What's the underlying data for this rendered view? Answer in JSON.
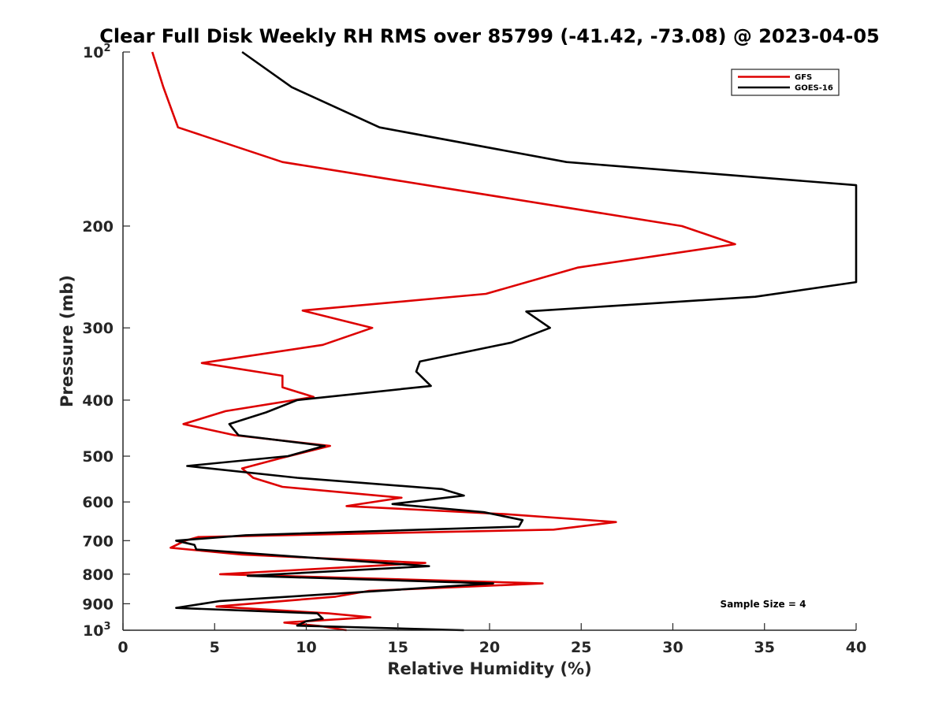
{
  "chart_data": {
    "type": "line",
    "title": "Clear Full Disk Weekly RH RMS over 85799 (-41.42, -73.08) @ 2023-04-05",
    "xlabel": "Relative Humidity (%)",
    "ylabel": "Pressure (mb)",
    "xlim": [
      0,
      40
    ],
    "ylim": [
      100,
      1000
    ],
    "y_scale": "log",
    "y_reversed": true,
    "x_ticks": [
      0,
      5,
      10,
      15,
      20,
      25,
      30,
      35,
      40
    ],
    "x_tick_labels": [
      "0",
      "5",
      "10",
      "15",
      "20",
      "25",
      "30",
      "35",
      "40"
    ],
    "y_ticks": [
      100,
      200,
      300,
      400,
      500,
      600,
      700,
      800,
      900,
      1000
    ],
    "y_tick_labels": [
      {
        "base": "10",
        "sup": "2"
      },
      {
        "base": "200",
        "sup": ""
      },
      {
        "base": "300",
        "sup": ""
      },
      {
        "base": "400",
        "sup": ""
      },
      {
        "base": "500",
        "sup": ""
      },
      {
        "base": "600",
        "sup": ""
      },
      {
        "base": "700",
        "sup": ""
      },
      {
        "base": "800",
        "sup": ""
      },
      {
        "base": "900",
        "sup": ""
      },
      {
        "base": "10",
        "sup": "3"
      }
    ],
    "grid": false,
    "legend_position": "top-right",
    "annotation": "Sample Size = 4",
    "series": [
      {
        "name": "GFS",
        "color": "#dd0000",
        "points": [
          [
            1.6,
            100
          ],
          [
            2.2,
            115
          ],
          [
            3.0,
            135
          ],
          [
            8.7,
            155
          ],
          [
            30.5,
            200
          ],
          [
            33.4,
            215
          ],
          [
            24.8,
            236
          ],
          [
            19.8,
            262
          ],
          [
            9.8,
            280
          ],
          [
            13.6,
            300
          ],
          [
            10.9,
            321
          ],
          [
            4.3,
            345
          ],
          [
            8.7,
            363
          ],
          [
            8.7,
            380
          ],
          [
            10.4,
            395
          ],
          [
            5.6,
            418
          ],
          [
            3.3,
            440
          ],
          [
            6.1,
            460
          ],
          [
            11.3,
            480
          ],
          [
            8.5,
            505
          ],
          [
            6.5,
            525
          ],
          [
            7.1,
            545
          ],
          [
            8.7,
            565
          ],
          [
            15.2,
            590
          ],
          [
            12.2,
            610
          ],
          [
            20.9,
            630
          ],
          [
            26.9,
            650
          ],
          [
            23.5,
            670
          ],
          [
            4.1,
            690
          ],
          [
            3.4,
            700
          ],
          [
            2.6,
            720
          ],
          [
            6.5,
            740
          ],
          [
            16.5,
            765
          ],
          [
            5.3,
            800
          ],
          [
            22.9,
            830
          ],
          [
            13.4,
            855
          ],
          [
            11.6,
            875
          ],
          [
            5.1,
            910
          ],
          [
            11.2,
            935
          ],
          [
            13.5,
            950
          ],
          [
            8.8,
            970
          ],
          [
            10.7,
            983
          ],
          [
            12.2,
            1000
          ]
        ]
      },
      {
        "name": "GOES-16",
        "color": "#000000",
        "points": [
          [
            6.5,
            100
          ],
          [
            9.2,
            115
          ],
          [
            14.0,
            135
          ],
          [
            24.2,
            155
          ],
          [
            40.0,
            170
          ],
          [
            40.0,
            250
          ],
          [
            34.5,
            265
          ],
          [
            22.0,
            281
          ],
          [
            23.3,
            300
          ],
          [
            21.2,
            318
          ],
          [
            16.2,
            343
          ],
          [
            16.0,
            357
          ],
          [
            16.8,
            378
          ],
          [
            9.5,
            400
          ],
          [
            7.8,
            420
          ],
          [
            5.8,
            440
          ],
          [
            6.3,
            460
          ],
          [
            11.0,
            480
          ],
          [
            9.0,
            500
          ],
          [
            3.5,
            520
          ],
          [
            9.5,
            545
          ],
          [
            17.4,
            570
          ],
          [
            18.6,
            585
          ],
          [
            14.7,
            605
          ],
          [
            19.7,
            625
          ],
          [
            21.8,
            645
          ],
          [
            21.6,
            662
          ],
          [
            6.7,
            685
          ],
          [
            2.9,
            700
          ],
          [
            3.9,
            712
          ],
          [
            4.0,
            725
          ],
          [
            16.7,
            775
          ],
          [
            6.8,
            805
          ],
          [
            20.2,
            830
          ],
          [
            14.0,
            855
          ],
          [
            5.3,
            890
          ],
          [
            2.9,
            915
          ],
          [
            10.6,
            935
          ],
          [
            10.9,
            955
          ],
          [
            10.0,
            965
          ],
          [
            9.5,
            982
          ],
          [
            18.6,
            1000
          ]
        ]
      }
    ]
  }
}
